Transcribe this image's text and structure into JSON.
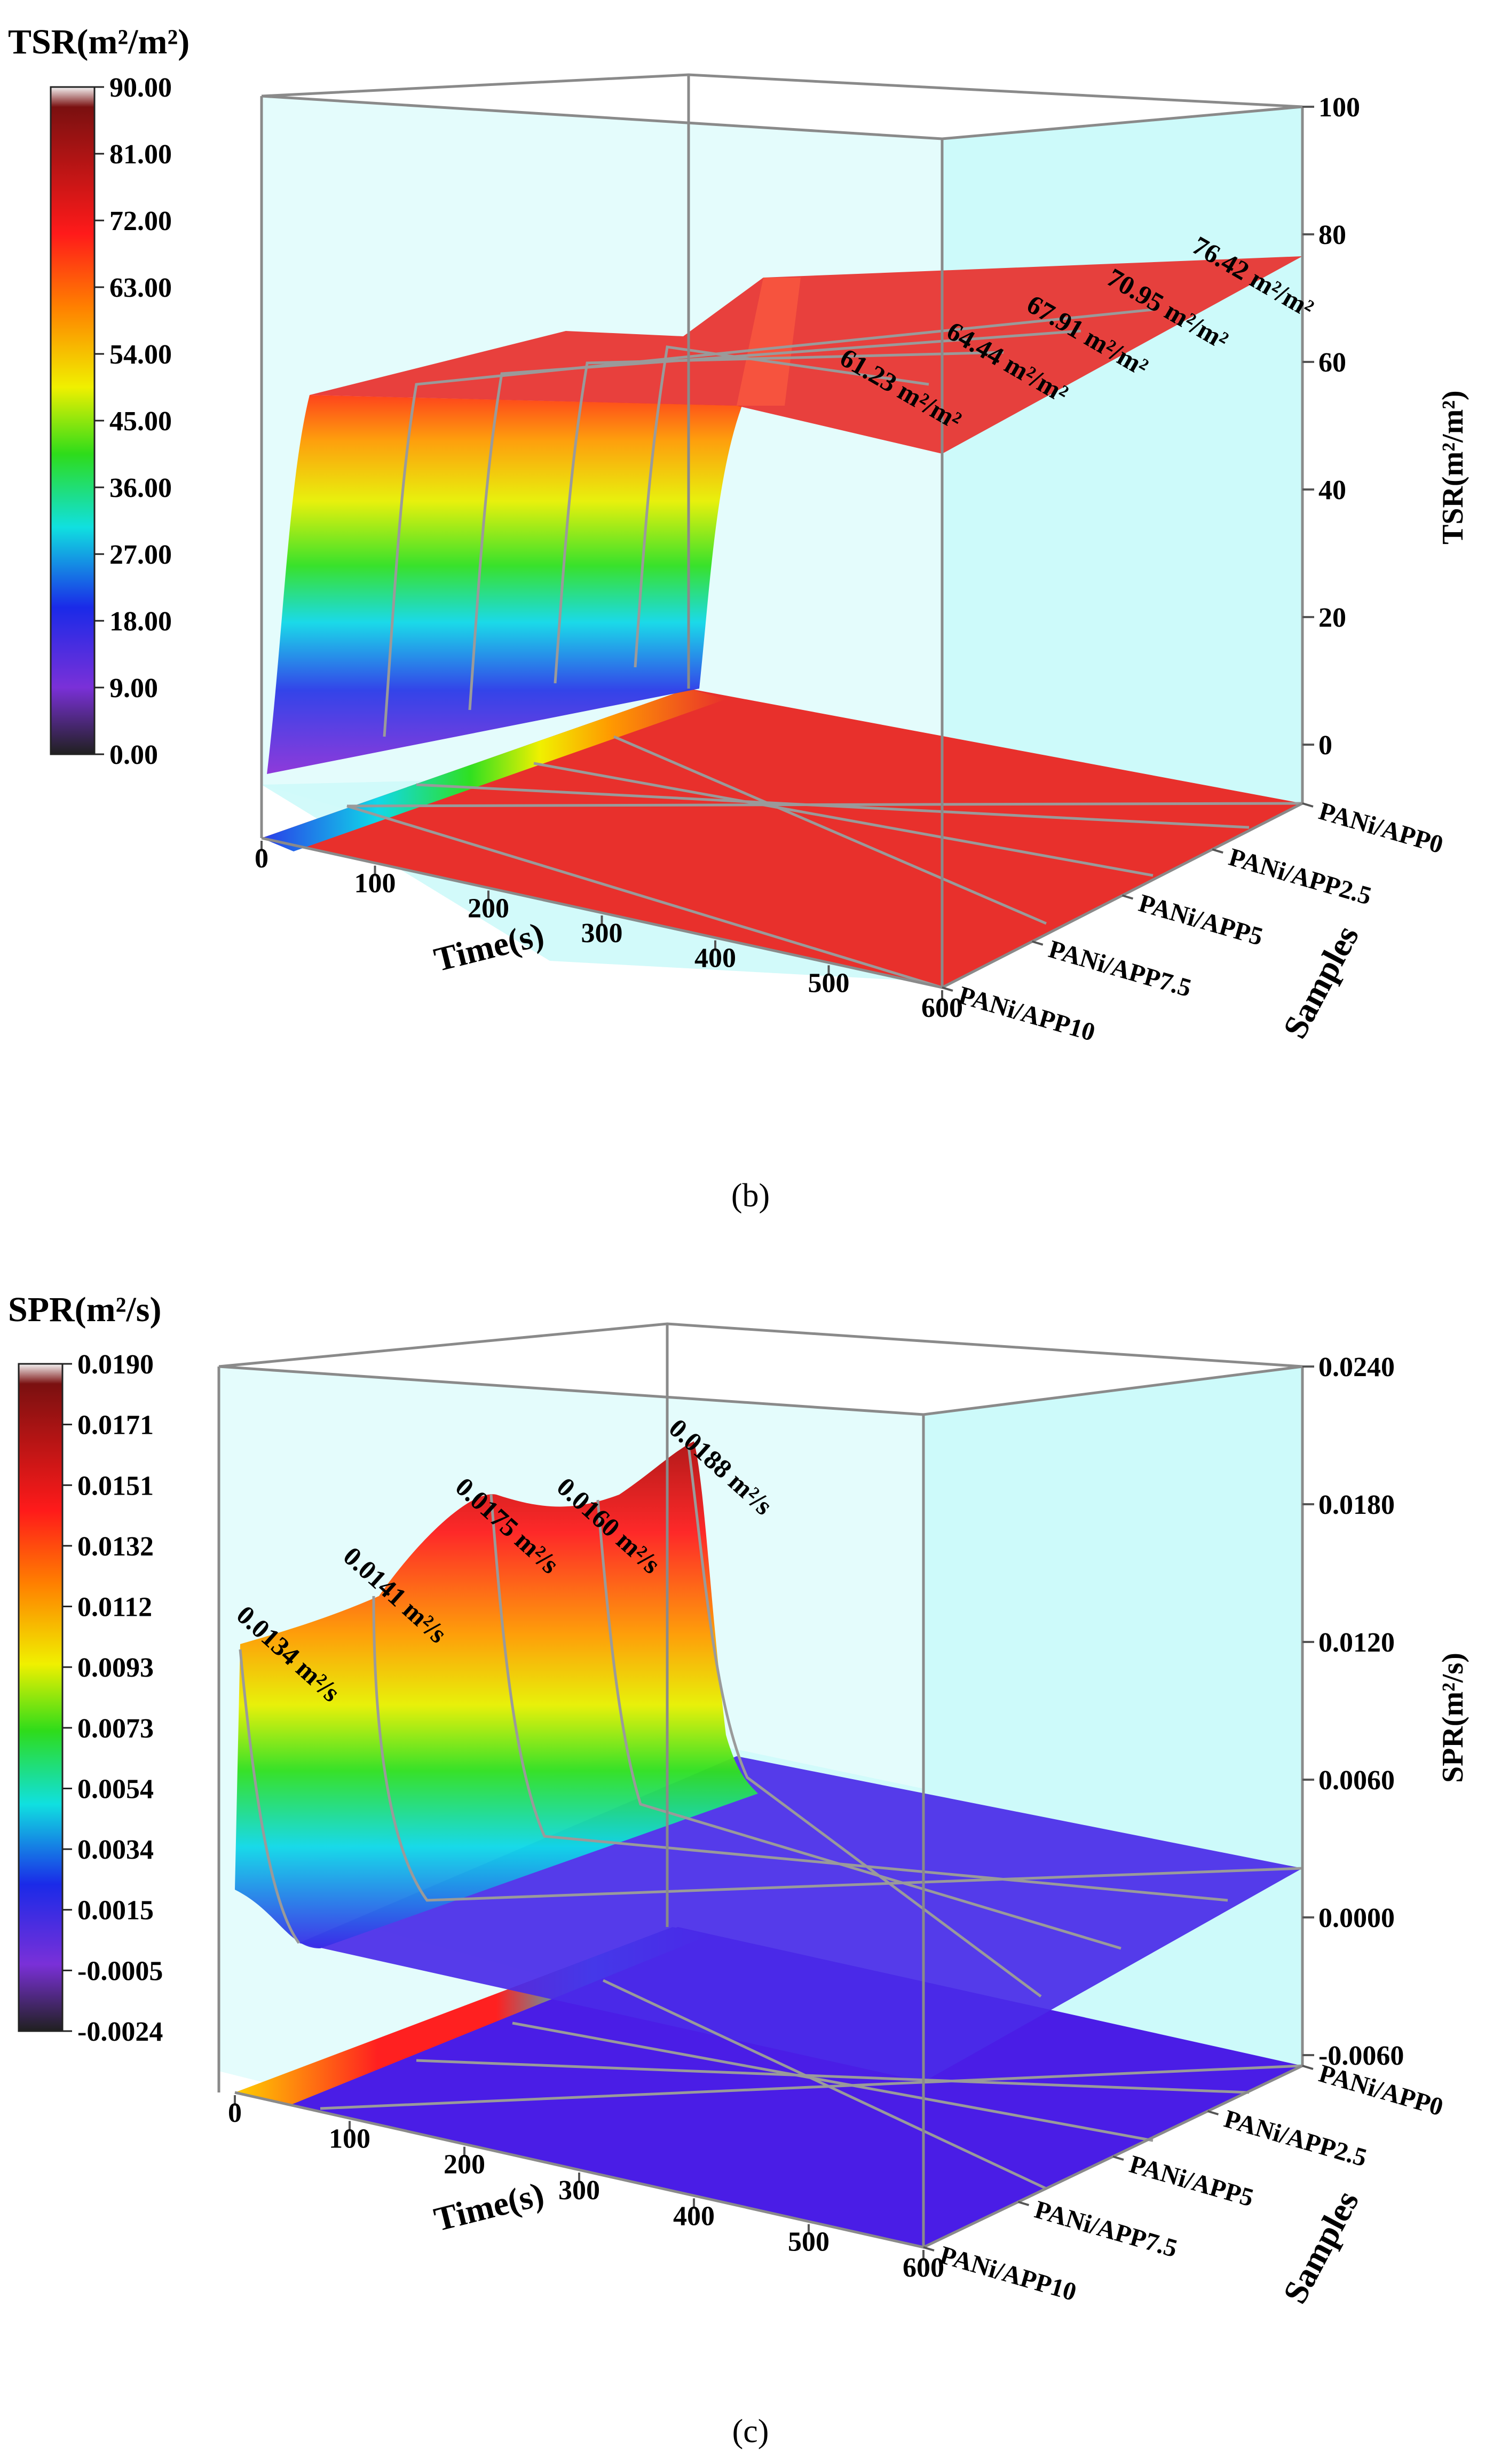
{
  "chart_data": [
    {
      "type": "3d-surface",
      "panel_label": "b",
      "colorbar_title": "TSR(m²/m²)",
      "colorbar_ticks": [
        "90.00",
        "81.00",
        "72.00",
        "63.00",
        "54.00",
        "45.00",
        "36.00",
        "27.00",
        "18.00",
        "9.00",
        "0.00"
      ],
      "colorbar_range": [
        0,
        90
      ],
      "xlabel": "Time(s)",
      "x_ticks": [
        "0",
        "100",
        "200",
        "300",
        "400",
        "500",
        "600"
      ],
      "xlim": [
        0,
        600
      ],
      "ylabel": "Samples",
      "samples": [
        "PANi/APP0",
        "PANi/APP2.5",
        "PANi/APP5",
        "PANi/APP7.5",
        "PANi/APP10"
      ],
      "zlabel": "TSR(m²/m²)",
      "z_ticks": [
        "100",
        "80",
        "60",
        "40",
        "20",
        "0"
      ],
      "zlim": [
        -5,
        100
      ],
      "annotations": [
        "76.42 m²/m²",
        "70.95 m²/m²",
        "67.91 m²/m²",
        "64.44 m²/m²",
        "61.23 m²/m²"
      ],
      "final_values": {
        "PANi/APP0": 76.42,
        "PANi/APP2.5": 70.95,
        "PANi/APP5": 67.91,
        "PANi/APP7.5": 64.44,
        "PANi/APP10": 61.23
      }
    },
    {
      "type": "3d-surface",
      "panel_label": "c",
      "colorbar_title": "SPR(m²/s)",
      "colorbar_ticks": [
        "0.0190",
        "0.0171",
        "0.0151",
        "0.0132",
        "0.0112",
        "0.0093",
        "0.0073",
        "0.0054",
        "0.0034",
        "0.0015",
        "-0.0005",
        "-0.0024"
      ],
      "colorbar_range": [
        -0.0024,
        0.019
      ],
      "xlabel": "Time(s)",
      "x_ticks": [
        "0",
        "100",
        "200",
        "300",
        "400",
        "500",
        "600"
      ],
      "xlim": [
        0,
        600
      ],
      "ylabel": "Samples",
      "samples": [
        "PANi/APP0",
        "PANi/APP2.5",
        "PANi/APP5",
        "PANi/APP7.5",
        "PANi/APP10"
      ],
      "zlabel": "SPR(m²/s)",
      "z_ticks": [
        "0.0240",
        "0.0180",
        "0.0120",
        "0.0060",
        "0.0000",
        "-0.0060"
      ],
      "zlim": [
        -0.006,
        0.024
      ],
      "annotations": [
        "0.0188 m²/s",
        "0.0160 m²/s",
        "0.0175 m²/s",
        "0.0141 m²/s",
        "0.0134 m²/s"
      ],
      "peak_values": {
        "PANi/APP0": 0.0188,
        "PANi/APP2.5": 0.016,
        "PANi/APP5": 0.0175,
        "PANi/APP7.5": 0.0141,
        "PANi/APP10": 0.0134
      }
    }
  ],
  "captions": {
    "b": "(b)",
    "c": "(c)"
  },
  "colors": {
    "surface_top": "#e8302c",
    "back_wall": "#cdfafa",
    "floor_low": "#4a1de6",
    "frame": "#8a8a8a"
  }
}
